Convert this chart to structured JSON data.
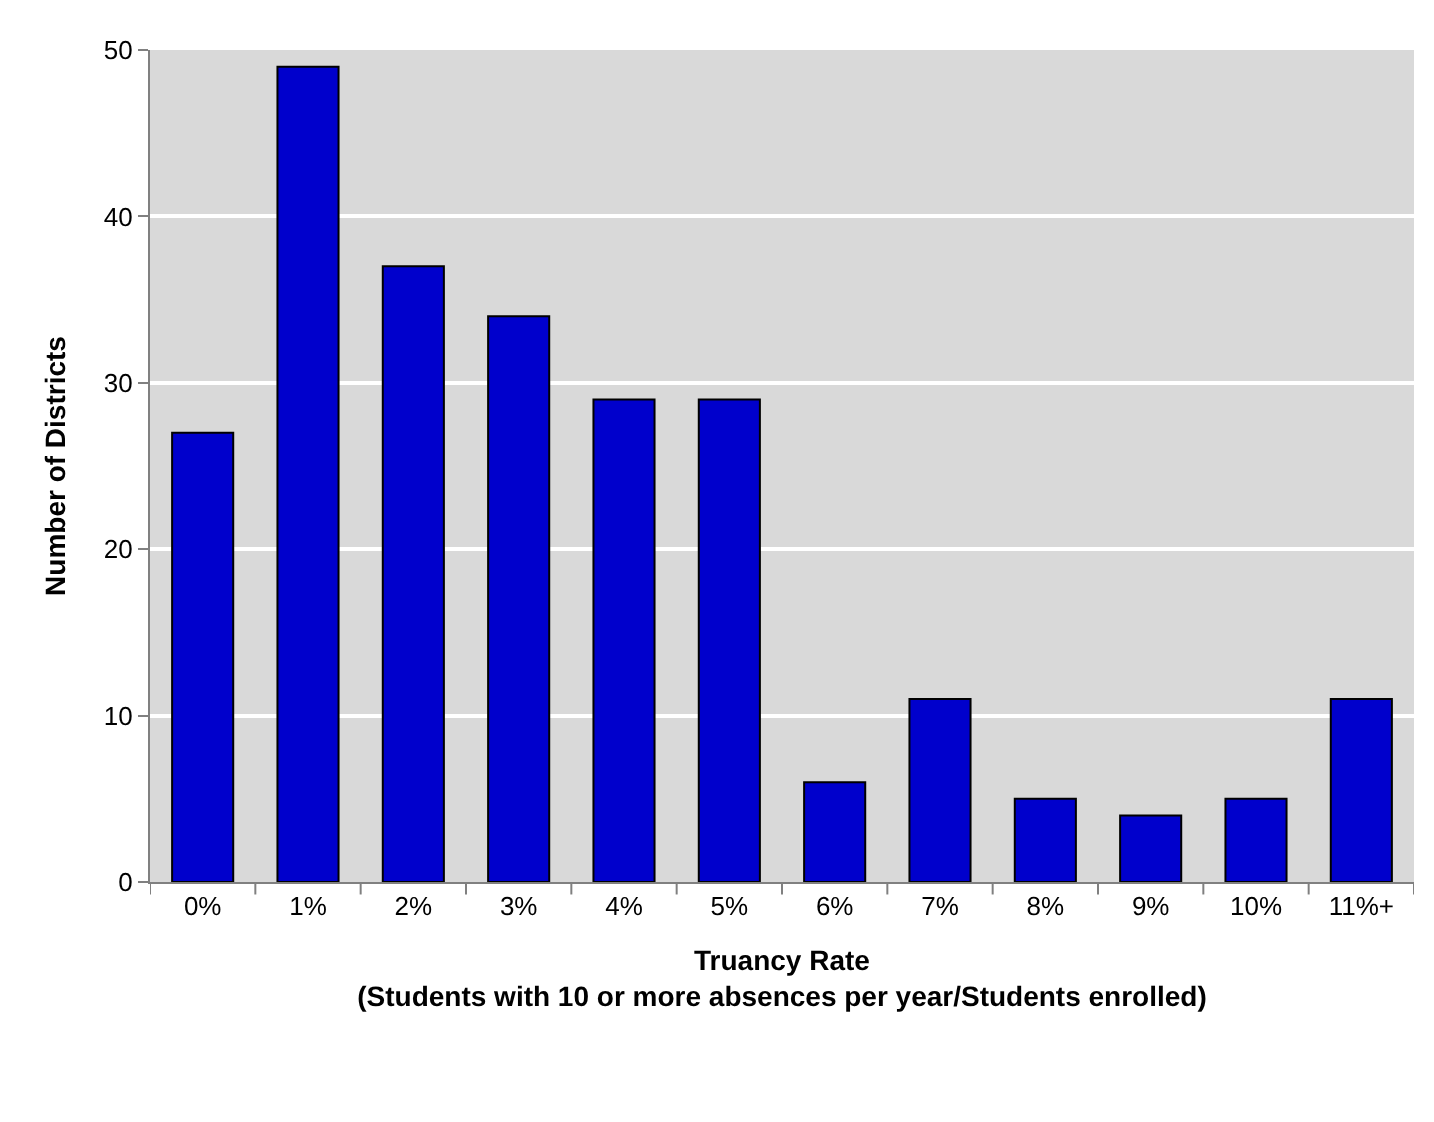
{
  "chart_data": {
    "type": "bar",
    "xlabel": "Truancy Rate\n(Students with 10 or more absences per year/Students enrolled)",
    "ylabel": "Number of Districts",
    "categories": [
      "0%",
      "1%",
      "2%",
      "3%",
      "4%",
      "5%",
      "6%",
      "7%",
      "8%",
      "9%",
      "10%",
      "11%+"
    ],
    "values": [
      27,
      49,
      37,
      34,
      29,
      29,
      6,
      11,
      5,
      4,
      5,
      11
    ],
    "color": "#0000cc",
    "ylim": [
      0,
      50
    ],
    "yticks": [
      0,
      10,
      20,
      30,
      40,
      50
    ],
    "grid": "y"
  }
}
